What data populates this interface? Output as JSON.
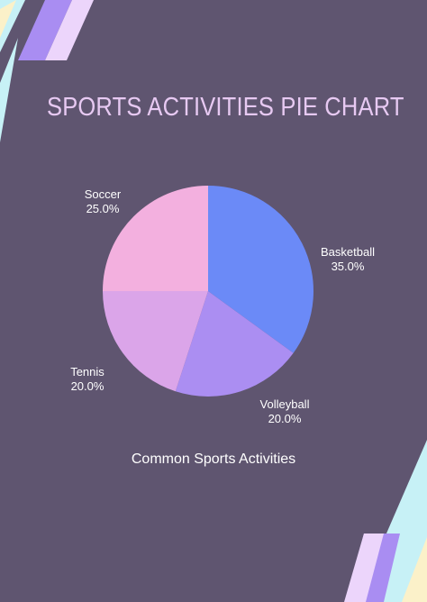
{
  "colors": {
    "background": "#5f5570",
    "text": "#ffffff",
    "title": "#e7c9f2",
    "decor_blue": "#c7f1f6",
    "decor_purple": "#a98df2",
    "decor_lilac": "#ecd5fb",
    "decor_cream": "#fbf1c9"
  },
  "chart_data": {
    "type": "pie",
    "title": "SPORTS ACTIVITIES PIE CHART",
    "subtitle": "Common Sports Activities",
    "legend": "none",
    "start_angle_degrees": 0,
    "direction": "clockwise",
    "slices": [
      {
        "label": "Basketball",
        "value": 35.0,
        "value_text": "35.0%",
        "color": "#6b8af7"
      },
      {
        "label": "Volleyball",
        "value": 20.0,
        "value_text": "20.0%",
        "color": "#ab8ef2"
      },
      {
        "label": "Tennis",
        "value": 20.0,
        "value_text": "20.0%",
        "color": "#dba5e9"
      },
      {
        "label": "Soccer",
        "value": 25.0,
        "value_text": "25.0%",
        "color": "#f3b0df"
      }
    ]
  }
}
